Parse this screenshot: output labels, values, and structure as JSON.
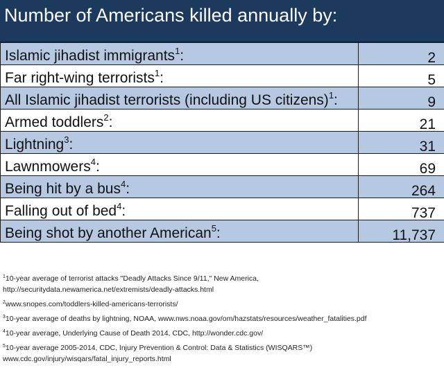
{
  "chart_data": {
    "type": "table",
    "title": "Number of Americans killed annually by:",
    "rows": [
      {
        "label": "Islamic jihadist immigrants",
        "ref": "1",
        "suffix": ":",
        "value": "2",
        "numeric": 2
      },
      {
        "label": "Far right-wing terrorists",
        "ref": "1",
        "suffix": ":",
        "value": "5",
        "numeric": 5
      },
      {
        "label": "All Islamic jihadist terrorists (including US citizens)",
        "ref": "1",
        "suffix": ":",
        "value": "9",
        "numeric": 9
      },
      {
        "label": "Armed toddlers",
        "ref": "2",
        "suffix": ":",
        "value": "21",
        "numeric": 21
      },
      {
        "label": "Lightning",
        "ref": "3",
        "suffix": ":",
        "value": "31",
        "numeric": 31
      },
      {
        "label": "Lawnmowers",
        "ref": "4",
        "suffix": ":",
        "value": "69",
        "numeric": 69
      },
      {
        "label": "Being hit by a bus",
        "ref": "4",
        "suffix": ":",
        "value": "264",
        "numeric": 264
      },
      {
        "label": "Falling out of bed",
        "ref": "4",
        "suffix": ":",
        "value": "737",
        "numeric": 737
      },
      {
        "label": "Being shot by another American",
        "ref": "5",
        "suffix": ":",
        "value": "11,737",
        "numeric": 11737
      }
    ],
    "footnotes": [
      {
        "ref": "1",
        "lines": [
          "10-year average of terrorist attacks  \"Deadly Attacks Since 9/11,\" New America,",
          "http://securitydata.newamerica.net/extremists/deadly-attacks.html"
        ]
      },
      {
        "ref": "2",
        "lines": [
          "www.snopes.com/toddlers-killed-americans-terrorists/"
        ]
      },
      {
        "ref": "3",
        "lines": [
          "10-year average of deaths by lightning, NOAA, www.nws.noaa.gov/om/hazstats/resources/weather_fatalities.pdf"
        ]
      },
      {
        "ref": "4",
        "lines": [
          "10-year average, Underlying Cause of Death 2014, CDC, http://wonder.cdc.gov/"
        ]
      },
      {
        "ref": "5",
        "lines": [
          "10-year average 2005-2014, CDC, Injury Prevention & Control: Data & Statistics (WISQARS™)",
          "www.cdc.gov/injury/wisqars/fatal_injury_reports.html"
        ]
      }
    ]
  },
  "colors": {
    "header_bg": "#1c3a5e",
    "row_shade": "#b7c9e2",
    "row_plain": "#ffffff",
    "border": "#1a1a1a"
  }
}
